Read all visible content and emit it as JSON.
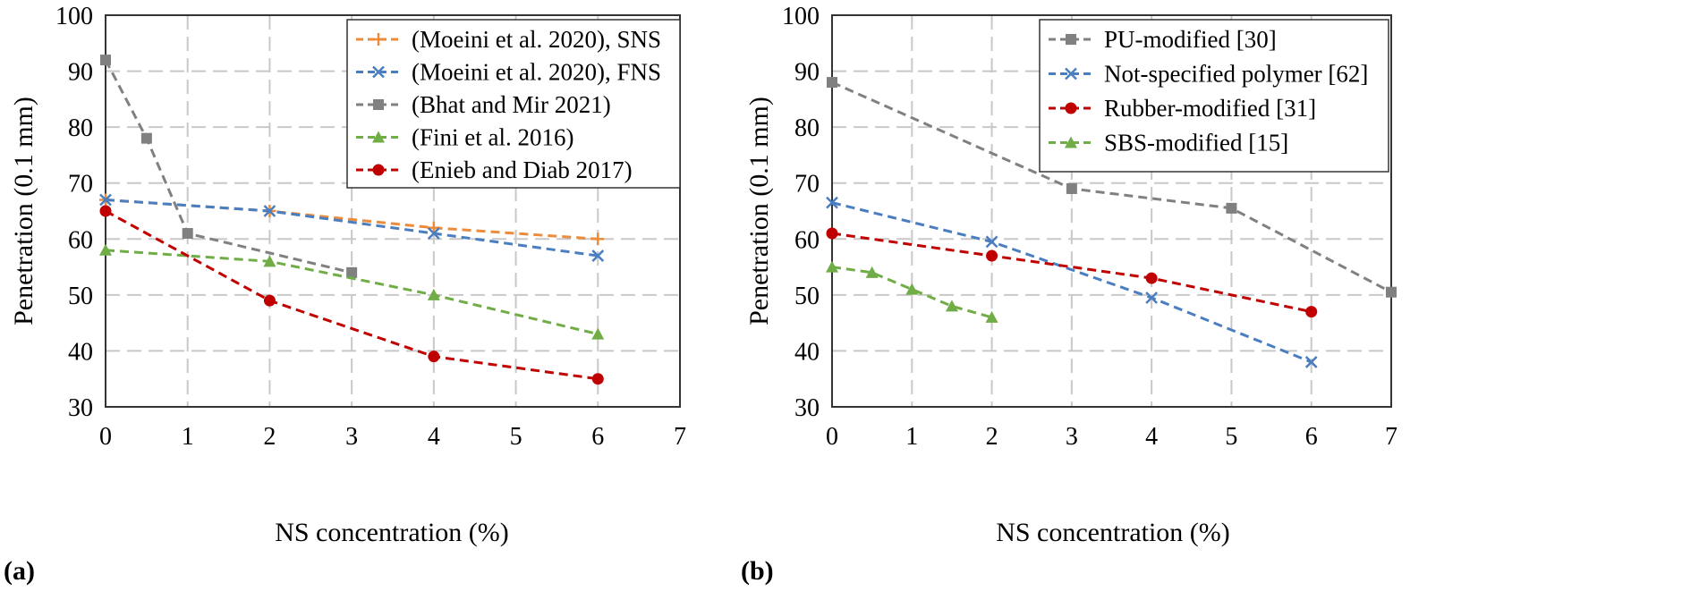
{
  "chart_data": [
    {
      "type": "line",
      "panel_label": "(a)",
      "xlabel": "NS concentration (%)",
      "ylabel": "Penetration (0.1 mm)",
      "xlim": [
        0,
        7
      ],
      "ylim": [
        30,
        100
      ],
      "xticks": [
        "0",
        "1",
        "2",
        "3",
        "4",
        "5",
        "6",
        "7"
      ],
      "yticks": [
        "30",
        "40",
        "50",
        "60",
        "70",
        "80",
        "90",
        "100"
      ],
      "grid": true,
      "legend_position": "top-right",
      "series": [
        {
          "name": "(Moeini et al. 2020), SNS",
          "color": "#ED8B3A",
          "marker": "plus",
          "x": [
            0,
            2,
            4,
            6
          ],
          "y": [
            67,
            65,
            62,
            60
          ]
        },
        {
          "name": "(Moeini et al. 2020), FNS",
          "color": "#4A7EC0",
          "marker": "x",
          "x": [
            0,
            2,
            4,
            6
          ],
          "y": [
            67,
            65,
            61,
            57
          ]
        },
        {
          "name": "(Bhat and Mir 2021)",
          "color": "#808080",
          "marker": "square",
          "x": [
            0,
            0.5,
            1,
            3
          ],
          "y": [
            92,
            78,
            61,
            54
          ]
        },
        {
          "name": "(Fini et al. 2016)",
          "color": "#70AD47",
          "marker": "triangle",
          "x": [
            0,
            2,
            4,
            6
          ],
          "y": [
            58,
            56,
            50,
            43
          ]
        },
        {
          "name": "(Enieb and Diab 2017)",
          "color": "#C00000",
          "marker": "circle",
          "x": [
            0,
            2,
            4,
            6
          ],
          "y": [
            65,
            49,
            39,
            35
          ]
        }
      ]
    },
    {
      "type": "line",
      "panel_label": "(b)",
      "xlabel": "NS concentration (%)",
      "ylabel": "Penetration (0.1 mm)",
      "xlim": [
        0,
        7
      ],
      "ylim": [
        30,
        100
      ],
      "xticks": [
        "0",
        "1",
        "2",
        "3",
        "4",
        "5",
        "6",
        "7"
      ],
      "yticks": [
        "30",
        "40",
        "50",
        "60",
        "70",
        "80",
        "90",
        "100"
      ],
      "grid": true,
      "legend_position": "top-right",
      "series": [
        {
          "name": "PU-modified [30]",
          "color": "#808080",
          "marker": "square",
          "x": [
            0,
            3,
            5,
            7
          ],
          "y": [
            88,
            69,
            65.5,
            50.5
          ]
        },
        {
          "name": "Not-specified polymer [62]",
          "color": "#4A7EC0",
          "marker": "x",
          "x": [
            0,
            2,
            4,
            6
          ],
          "y": [
            66.5,
            59.5,
            49.5,
            38
          ]
        },
        {
          "name": "Rubber-modified [31]",
          "color": "#C00000",
          "marker": "circle",
          "x": [
            0,
            2,
            4,
            6
          ],
          "y": [
            61,
            57,
            53,
            47
          ]
        },
        {
          "name": "SBS-modified [15]",
          "color": "#70AD47",
          "marker": "triangle",
          "x": [
            0,
            0.5,
            1,
            1.5,
            2
          ],
          "y": [
            55,
            54,
            51,
            48,
            46
          ]
        }
      ]
    }
  ]
}
